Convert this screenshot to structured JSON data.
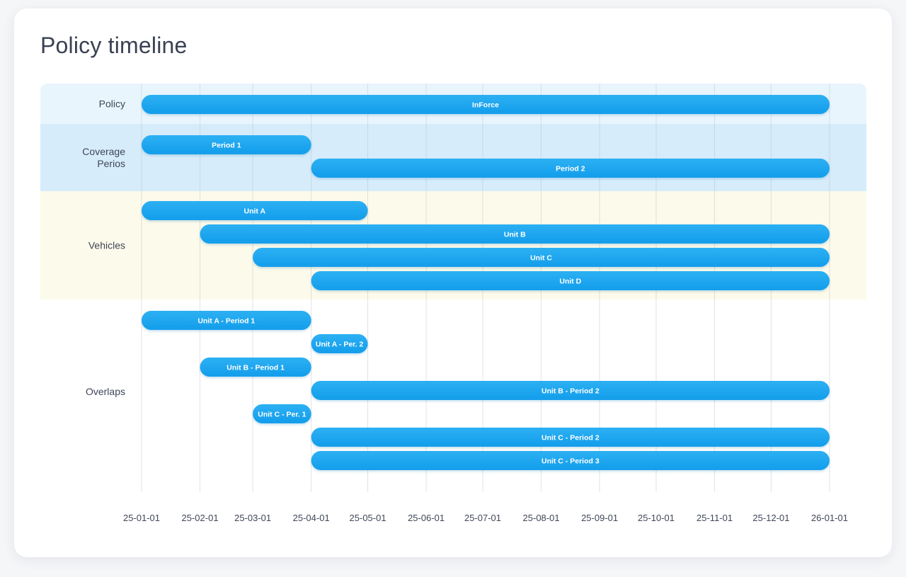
{
  "page": {
    "title": "Policy timeline"
  },
  "chart_data": {
    "type": "timeline",
    "title": "Policy timeline",
    "x_ticks": [
      "25-01-01",
      "25-02-01",
      "25-03-01",
      "25-04-01",
      "25-05-01",
      "25-06-01",
      "25-07-01",
      "25-08-01",
      "25-09-01",
      "25-10-01",
      "25-11-01",
      "25-12-01",
      "26-01-01"
    ],
    "bar_color": "#1ea6ee",
    "groups": [
      {
        "name": "Policy",
        "label_lines": [
          "Policy"
        ],
        "color": "#e9f5fd",
        "bars": [
          {
            "label": "InForce",
            "start": "2025-01-01",
            "end": "2026-01-01"
          }
        ]
      },
      {
        "name": "Coverage Perios",
        "label_lines": [
          "Coverage",
          "Perios"
        ],
        "color": "#d6ecfa",
        "bars": [
          {
            "label": "Period 1",
            "start": "2025-01-01",
            "end": "2025-04-01"
          },
          {
            "label": "Period 2",
            "start": "2025-04-01",
            "end": "2026-01-01"
          }
        ]
      },
      {
        "name": "Vehicles",
        "label_lines": [
          "Vehicles"
        ],
        "color": "#fcfaea",
        "bars": [
          {
            "label": "Unit A",
            "start": "2025-01-01",
            "end": "2025-05-01"
          },
          {
            "label": "Unit B",
            "start": "2025-02-01",
            "end": "2026-01-01"
          },
          {
            "label": "Unit C",
            "start": "2025-03-01",
            "end": "2026-01-01"
          },
          {
            "label": "Unit D",
            "start": "2025-04-01",
            "end": "2026-01-01"
          }
        ]
      },
      {
        "name": "Overlaps",
        "label_lines": [
          "Overlaps"
        ],
        "color": "#ffffff",
        "bars": [
          {
            "label": "Unit A - Period 1",
            "start": "2025-01-01",
            "end": "2025-04-01"
          },
          {
            "label": "Unit A - Per. 2",
            "start": "2025-04-01",
            "end": "2025-05-01"
          },
          {
            "label": "Unit B - Period 1",
            "start": "2025-02-01",
            "end": "2025-04-01"
          },
          {
            "label": "Unit B - Period 2",
            "start": "2025-04-01",
            "end": "2026-01-01"
          },
          {
            "label": "Unit C - Per. 1",
            "start": "2025-03-01",
            "end": "2025-04-01"
          },
          {
            "label": "Unit C - Period 2",
            "start": "2025-04-01",
            "end": "2026-01-01"
          },
          {
            "label": "Unit C - Period 3",
            "start": "2025-04-01",
            "end": "2026-01-01"
          }
        ]
      }
    ]
  }
}
